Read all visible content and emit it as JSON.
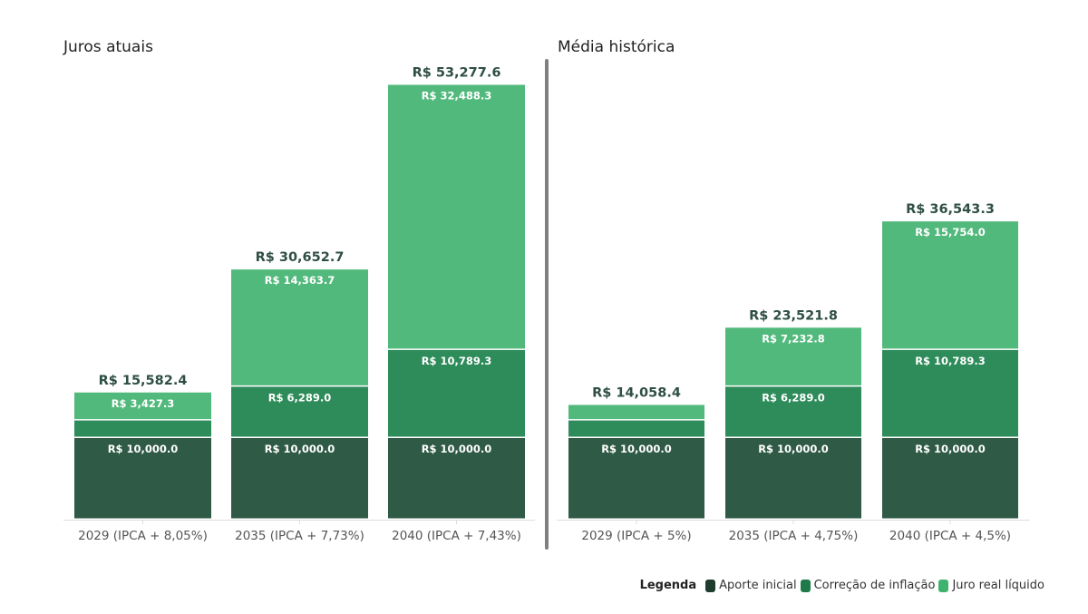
{
  "chart_data": [
    {
      "type": "bar",
      "stacked": true,
      "title": "Juros atuais",
      "categories": [
        "2029 (IPCA + 8,05%)",
        "2035 (IPCA + 7,73%)",
        "2040 (IPCA + 7,43%)"
      ],
      "series": [
        {
          "name": "Aporte inicial",
          "values": [
            10000.0,
            10000.0,
            10000.0
          ],
          "labels": [
            "R$ 10,000.0",
            "R$ 10,000.0",
            "R$ 10,000.0"
          ]
        },
        {
          "name": "Correção de inflação",
          "values": [
            2155.1,
            6289.0,
            10789.3
          ],
          "labels": [
            "",
            "R$ 6,289.0",
            "R$ 10,789.3"
          ]
        },
        {
          "name": "Juro real líquido",
          "values": [
            3427.3,
            14363.7,
            32488.3
          ],
          "labels": [
            "R$ 3,427.3",
            "R$ 14,363.7",
            "R$ 32,488.3"
          ]
        }
      ],
      "totals": [
        15582.4,
        30652.7,
        53277.6
      ],
      "total_labels": [
        "R$ 15,582.4",
        "R$ 30,652.7",
        "R$ 53,277.6"
      ],
      "xlabel": "",
      "ylabel": "",
      "ylim": [
        0,
        55000
      ],
      "grid": false
    },
    {
      "type": "bar",
      "stacked": true,
      "title": "Média histórica",
      "categories": [
        "2029 (IPCA + 5%)",
        "2035 (IPCA + 4,75%)",
        "2040 (IPCA + 4,5%)"
      ],
      "series": [
        {
          "name": "Aporte inicial",
          "values": [
            10000.0,
            10000.0,
            10000.0
          ],
          "labels": [
            "R$ 10,000.0",
            "R$ 10,000.0",
            "R$ 10,000.0"
          ]
        },
        {
          "name": "Correção de inflação",
          "values": [
            2155.1,
            6289.0,
            10789.3
          ],
          "labels": [
            "",
            "R$ 6,289.0",
            "R$ 10,789.3"
          ]
        },
        {
          "name": "Juro real líquido",
          "values": [
            1903.3,
            7232.8,
            15754.0
          ],
          "labels": [
            "",
            "R$ 7,232.8",
            "R$ 15,754.0"
          ]
        }
      ],
      "totals": [
        14058.4,
        23521.8,
        36543.3
      ],
      "total_labels": [
        "R$ 14,058.4",
        "R$ 23,521.8",
        "R$ 36,543.3"
      ],
      "xlabel": "",
      "ylabel": "",
      "ylim": [
        0,
        55000
      ],
      "grid": false
    }
  ],
  "legend": {
    "title": "Legenda",
    "placement": "bottom-right",
    "items": [
      {
        "label": "Aporte inicial",
        "color": "#1e3d2f"
      },
      {
        "label": "Correção de inflação",
        "color": "#1f7a4a"
      },
      {
        "label": "Juro real líquido",
        "color": "#3fb26e"
      }
    ]
  },
  "colors": {
    "segments": [
      "#2f5a46",
      "#2e8b5a",
      "#52b97c"
    ],
    "divider": "#808080",
    "axis": "#dddddd"
  }
}
